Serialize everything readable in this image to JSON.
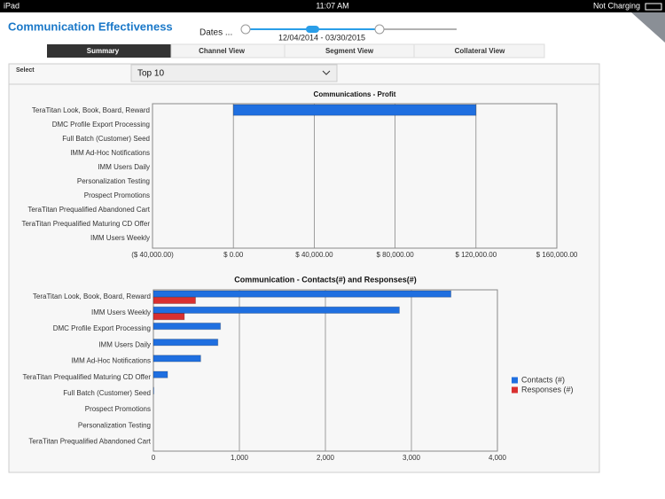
{
  "status_bar": {
    "device": "iPad",
    "time": "11:07 AM",
    "battery": "Not Charging"
  },
  "header": {
    "title": "Communication Effectiveness",
    "dates_label": "Dates ...",
    "date_range": "12/04/2014 -  03/30/2015"
  },
  "tabs": [
    "Summary",
    "Channel View",
    "Segment View",
    "Collateral View"
  ],
  "filter": {
    "label": "Select",
    "value": "Top 10"
  },
  "chart_data": [
    {
      "type": "bar",
      "orientation": "horizontal",
      "title": "Communications - Profit",
      "categories": [
        "TeraTitan Look, Book, Board, Reward",
        "DMC Profile Export Processing",
        "Full Batch (Customer) Seed",
        "IMM Ad-Hoc Notifications",
        "IMM Users Daily",
        "Personalization Testing",
        "Prospect Promotions",
        "TeraTitan Prequalified Abandoned Cart",
        "TeraTitan Prequalified Maturing CD Offer",
        "IMM Users Weekly"
      ],
      "values": [
        120000,
        0,
        0,
        0,
        0,
        0,
        0,
        0,
        0,
        0
      ],
      "color": "#1f6fe0",
      "xlim": [
        -40000,
        160000
      ],
      "xticks": [
        {
          "value": -40000,
          "label": "($ 40,000.00)"
        },
        {
          "value": 0,
          "label": "$ 0.00"
        },
        {
          "value": 40000,
          "label": "$ 40,000.00"
        },
        {
          "value": 80000,
          "label": "$ 80,000.00"
        },
        {
          "value": 120000,
          "label": "$ 120,000.00"
        },
        {
          "value": 160000,
          "label": "$ 160,000.00"
        }
      ],
      "grid": true
    },
    {
      "type": "bar",
      "orientation": "horizontal",
      "title": "Communication - Contacts(#) and Responses(#)",
      "categories": [
        "TeraTitan Look, Book, Board, Reward",
        "IMM Users Weekly",
        "DMC Profile Export Processing",
        "IMM Users Daily",
        "IMM Ad-Hoc Notifications",
        "TeraTitan Prequalified Maturing CD Offer",
        "Full Batch (Customer) Seed",
        "Prospect Promotions",
        "Personalization Testing",
        "TeraTitan Prequalified Abandoned Cart"
      ],
      "series": [
        {
          "name": "Contacts (#)",
          "color": "#1f6fe0",
          "values": [
            3460,
            2860,
            780,
            750,
            550,
            165,
            5,
            0,
            0,
            0
          ]
        },
        {
          "name": "Responses (#)",
          "color": "#d93030",
          "values": [
            490,
            360,
            0,
            0,
            0,
            0,
            0,
            0,
            0,
            0
          ]
        }
      ],
      "xlim": [
        0,
        4000
      ],
      "xticks": [
        0,
        {
          "value": 1000,
          "label": "1,000"
        },
        {
          "value": 2000,
          "label": "2,000"
        },
        {
          "value": 3000,
          "label": "3,000"
        },
        {
          "value": 4000,
          "label": "4,000"
        }
      ],
      "grid": true,
      "legend": "right"
    }
  ]
}
